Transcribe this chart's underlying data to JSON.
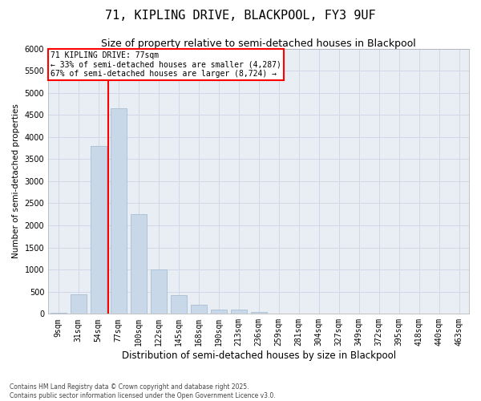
{
  "title1": "71, KIPLING DRIVE, BLACKPOOL, FY3 9UF",
  "title2": "Size of property relative to semi-detached houses in Blackpool",
  "xlabel": "Distribution of semi-detached houses by size in Blackpool",
  "ylabel": "Number of semi-detached properties",
  "categories": [
    "9sqm",
    "31sqm",
    "54sqm",
    "77sqm",
    "100sqm",
    "122sqm",
    "145sqm",
    "168sqm",
    "190sqm",
    "213sqm",
    "236sqm",
    "259sqm",
    "281sqm",
    "304sqm",
    "327sqm",
    "349sqm",
    "372sqm",
    "395sqm",
    "418sqm",
    "440sqm",
    "463sqm"
  ],
  "values": [
    30,
    450,
    3800,
    4650,
    2250,
    1000,
    430,
    200,
    100,
    100,
    50,
    15,
    0,
    0,
    0,
    0,
    0,
    0,
    0,
    0,
    0
  ],
  "bar_color": "#c8d8e8",
  "bar_edge_color": "#a0b8d0",
  "grid_color": "#d0d8e8",
  "bg_color": "#e8eef4",
  "vline_index": 3,
  "vline_color": "red",
  "annotation_title": "71 KIPLING DRIVE: 77sqm",
  "annotation_line1": "← 33% of semi-detached houses are smaller (4,287)",
  "annotation_line2": "67% of semi-detached houses are larger (8,724) →",
  "annotation_box_color": "red",
  "ylim": [
    0,
    6000
  ],
  "yticks": [
    0,
    500,
    1000,
    1500,
    2000,
    2500,
    3000,
    3500,
    4000,
    4500,
    5000,
    5500,
    6000
  ],
  "footnote": "Contains HM Land Registry data © Crown copyright and database right 2025.\nContains public sector information licensed under the Open Government Licence v3.0.",
  "title1_fontsize": 11,
  "title2_fontsize": 9,
  "xlabel_fontsize": 8.5,
  "ylabel_fontsize": 7.5,
  "tick_fontsize": 7,
  "annotation_fontsize": 7,
  "footnote_fontsize": 5.5
}
